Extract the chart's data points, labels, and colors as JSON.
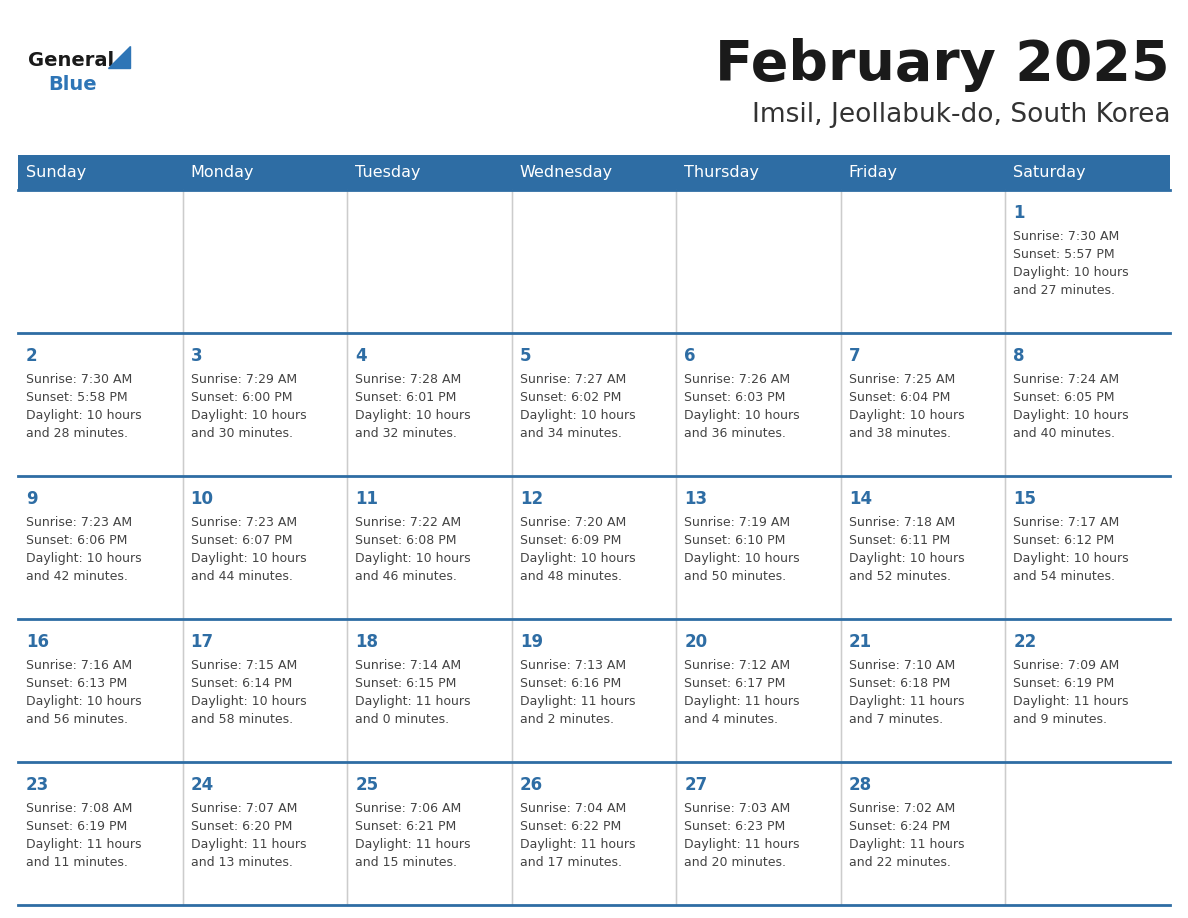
{
  "title": "February 2025",
  "subtitle": "Imsil, Jeollabuk-do, South Korea",
  "days_of_week": [
    "Sunday",
    "Monday",
    "Tuesday",
    "Wednesday",
    "Thursday",
    "Friday",
    "Saturday"
  ],
  "header_bg": "#2E6DA4",
  "header_text_color": "#FFFFFF",
  "cell_bg": "#FFFFFF",
  "border_color": "#2E6DA4",
  "day_number_color": "#2E6DA4",
  "cell_text_color": "#444444",
  "title_color": "#1a1a1a",
  "subtitle_color": "#333333",
  "logo_general_color": "#1a1a1a",
  "logo_blue_color": "#2E75B6",
  "weeks": [
    [
      {
        "day": null,
        "sunrise": null,
        "sunset": null,
        "daylight": null
      },
      {
        "day": null,
        "sunrise": null,
        "sunset": null,
        "daylight": null
      },
      {
        "day": null,
        "sunrise": null,
        "sunset": null,
        "daylight": null
      },
      {
        "day": null,
        "sunrise": null,
        "sunset": null,
        "daylight": null
      },
      {
        "day": null,
        "sunrise": null,
        "sunset": null,
        "daylight": null
      },
      {
        "day": null,
        "sunrise": null,
        "sunset": null,
        "daylight": null
      },
      {
        "day": 1,
        "sunrise": "7:30 AM",
        "sunset": "5:57 PM",
        "daylight": "10 hours\nand 27 minutes."
      }
    ],
    [
      {
        "day": 2,
        "sunrise": "7:30 AM",
        "sunset": "5:58 PM",
        "daylight": "10 hours\nand 28 minutes."
      },
      {
        "day": 3,
        "sunrise": "7:29 AM",
        "sunset": "6:00 PM",
        "daylight": "10 hours\nand 30 minutes."
      },
      {
        "day": 4,
        "sunrise": "7:28 AM",
        "sunset": "6:01 PM",
        "daylight": "10 hours\nand 32 minutes."
      },
      {
        "day": 5,
        "sunrise": "7:27 AM",
        "sunset": "6:02 PM",
        "daylight": "10 hours\nand 34 minutes."
      },
      {
        "day": 6,
        "sunrise": "7:26 AM",
        "sunset": "6:03 PM",
        "daylight": "10 hours\nand 36 minutes."
      },
      {
        "day": 7,
        "sunrise": "7:25 AM",
        "sunset": "6:04 PM",
        "daylight": "10 hours\nand 38 minutes."
      },
      {
        "day": 8,
        "sunrise": "7:24 AM",
        "sunset": "6:05 PM",
        "daylight": "10 hours\nand 40 minutes."
      }
    ],
    [
      {
        "day": 9,
        "sunrise": "7:23 AM",
        "sunset": "6:06 PM",
        "daylight": "10 hours\nand 42 minutes."
      },
      {
        "day": 10,
        "sunrise": "7:23 AM",
        "sunset": "6:07 PM",
        "daylight": "10 hours\nand 44 minutes."
      },
      {
        "day": 11,
        "sunrise": "7:22 AM",
        "sunset": "6:08 PM",
        "daylight": "10 hours\nand 46 minutes."
      },
      {
        "day": 12,
        "sunrise": "7:20 AM",
        "sunset": "6:09 PM",
        "daylight": "10 hours\nand 48 minutes."
      },
      {
        "day": 13,
        "sunrise": "7:19 AM",
        "sunset": "6:10 PM",
        "daylight": "10 hours\nand 50 minutes."
      },
      {
        "day": 14,
        "sunrise": "7:18 AM",
        "sunset": "6:11 PM",
        "daylight": "10 hours\nand 52 minutes."
      },
      {
        "day": 15,
        "sunrise": "7:17 AM",
        "sunset": "6:12 PM",
        "daylight": "10 hours\nand 54 minutes."
      }
    ],
    [
      {
        "day": 16,
        "sunrise": "7:16 AM",
        "sunset": "6:13 PM",
        "daylight": "10 hours\nand 56 minutes."
      },
      {
        "day": 17,
        "sunrise": "7:15 AM",
        "sunset": "6:14 PM",
        "daylight": "10 hours\nand 58 minutes."
      },
      {
        "day": 18,
        "sunrise": "7:14 AM",
        "sunset": "6:15 PM",
        "daylight": "11 hours\nand 0 minutes."
      },
      {
        "day": 19,
        "sunrise": "7:13 AM",
        "sunset": "6:16 PM",
        "daylight": "11 hours\nand 2 minutes."
      },
      {
        "day": 20,
        "sunrise": "7:12 AM",
        "sunset": "6:17 PM",
        "daylight": "11 hours\nand 4 minutes."
      },
      {
        "day": 21,
        "sunrise": "7:10 AM",
        "sunset": "6:18 PM",
        "daylight": "11 hours\nand 7 minutes."
      },
      {
        "day": 22,
        "sunrise": "7:09 AM",
        "sunset": "6:19 PM",
        "daylight": "11 hours\nand 9 minutes."
      }
    ],
    [
      {
        "day": 23,
        "sunrise": "7:08 AM",
        "sunset": "6:19 PM",
        "daylight": "11 hours\nand 11 minutes."
      },
      {
        "day": 24,
        "sunrise": "7:07 AM",
        "sunset": "6:20 PM",
        "daylight": "11 hours\nand 13 minutes."
      },
      {
        "day": 25,
        "sunrise": "7:06 AM",
        "sunset": "6:21 PM",
        "daylight": "11 hours\nand 15 minutes."
      },
      {
        "day": 26,
        "sunrise": "7:04 AM",
        "sunset": "6:22 PM",
        "daylight": "11 hours\nand 17 minutes."
      },
      {
        "day": 27,
        "sunrise": "7:03 AM",
        "sunset": "6:23 PM",
        "daylight": "11 hours\nand 20 minutes."
      },
      {
        "day": 28,
        "sunrise": "7:02 AM",
        "sunset": "6:24 PM",
        "daylight": "11 hours\nand 22 minutes."
      },
      {
        "day": null,
        "sunrise": null,
        "sunset": null,
        "daylight": null
      }
    ]
  ]
}
